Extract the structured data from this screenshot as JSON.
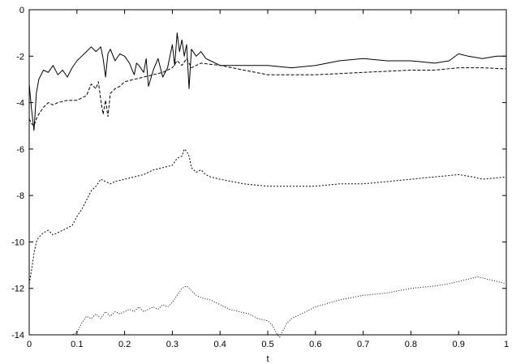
{
  "chart_data": {
    "type": "line",
    "title": "",
    "xlabel": "t",
    "ylabel": "",
    "xlim": [
      0,
      1
    ],
    "ylim": [
      -14,
      0
    ],
    "xticks": [
      0,
      0.1,
      0.2,
      0.3,
      0.4,
      0.5,
      0.6,
      0.7,
      0.8,
      0.9,
      1
    ],
    "yticks": [
      0,
      -2,
      -4,
      -6,
      -8,
      -10,
      -12,
      -14
    ],
    "xtick_labels": [
      "0",
      "0.1",
      "0.2",
      "0.3",
      "0.4",
      "0.5",
      "0.6",
      "0.7",
      "0.8",
      "0.9",
      "1"
    ],
    "ytick_labels": [
      "0",
      "-2",
      "-4",
      "-6",
      "-8",
      "-10",
      "-12",
      "-14"
    ],
    "grid": false,
    "legend": "none",
    "series": [
      {
        "style": "solid",
        "x": [
          0.0,
          0.005,
          0.01,
          0.015,
          0.02,
          0.03,
          0.04,
          0.05,
          0.06,
          0.07,
          0.08,
          0.09,
          0.1,
          0.11,
          0.12,
          0.13,
          0.14,
          0.15,
          0.155,
          0.16,
          0.165,
          0.17,
          0.18,
          0.19,
          0.2,
          0.21,
          0.22,
          0.225,
          0.23,
          0.24,
          0.245,
          0.25,
          0.26,
          0.27,
          0.28,
          0.29,
          0.3,
          0.305,
          0.31,
          0.315,
          0.32,
          0.325,
          0.33,
          0.335,
          0.34,
          0.35,
          0.36,
          0.37,
          0.38,
          0.4,
          0.45,
          0.5,
          0.55,
          0.6,
          0.65,
          0.7,
          0.75,
          0.8,
          0.85,
          0.88,
          0.9,
          0.92,
          0.95,
          0.98,
          1.0
        ],
        "y": [
          -3.2,
          -4.3,
          -5.2,
          -3.6,
          -3.0,
          -2.6,
          -2.7,
          -2.4,
          -2.8,
          -2.6,
          -2.9,
          -2.5,
          -2.2,
          -2.0,
          -1.8,
          -1.6,
          -1.8,
          -1.6,
          -2.1,
          -2.9,
          -1.9,
          -1.7,
          -2.2,
          -1.9,
          -2.0,
          -2.3,
          -2.8,
          -2.3,
          -2.4,
          -2.7,
          -2.1,
          -3.3,
          -2.6,
          -2.1,
          -2.9,
          -2.5,
          -1.5,
          -2.4,
          -1.0,
          -1.8,
          -1.3,
          -2.0,
          -1.5,
          -3.4,
          -1.7,
          -2.0,
          -1.8,
          -2.1,
          -2.2,
          -2.4,
          -2.4,
          -2.4,
          -2.5,
          -2.4,
          -2.2,
          -2.1,
          -2.2,
          -2.2,
          -2.3,
          -2.2,
          -1.9,
          -2.0,
          -2.1,
          -2.0,
          -2.0
        ]
      },
      {
        "style": "dashed",
        "x": [
          0.0,
          0.005,
          0.01,
          0.015,
          0.02,
          0.03,
          0.04,
          0.05,
          0.06,
          0.08,
          0.1,
          0.12,
          0.13,
          0.14,
          0.145,
          0.15,
          0.155,
          0.16,
          0.165,
          0.17,
          0.18,
          0.19,
          0.2,
          0.22,
          0.24,
          0.26,
          0.28,
          0.3,
          0.31,
          0.32,
          0.33,
          0.34,
          0.36,
          0.4,
          0.45,
          0.5,
          0.55,
          0.6,
          0.65,
          0.7,
          0.75,
          0.8,
          0.85,
          0.9,
          0.95,
          1.0
        ],
        "y": [
          -4.7,
          -4.9,
          -5.0,
          -4.7,
          -4.5,
          -4.2,
          -4.0,
          -4.1,
          -4.0,
          -3.9,
          -3.9,
          -3.7,
          -3.2,
          -3.4,
          -3.1,
          -3.9,
          -4.5,
          -3.9,
          -4.6,
          -3.6,
          -3.4,
          -3.3,
          -3.1,
          -3.0,
          -2.9,
          -2.8,
          -2.7,
          -2.5,
          -2.2,
          -2.4,
          -2.1,
          -2.5,
          -2.3,
          -2.4,
          -2.6,
          -2.8,
          -2.8,
          -2.8,
          -2.75,
          -2.7,
          -2.65,
          -2.6,
          -2.6,
          -2.5,
          -2.5,
          -2.55
        ]
      },
      {
        "style": "dotted",
        "x": [
          0.0,
          0.005,
          0.01,
          0.015,
          0.02,
          0.03,
          0.04,
          0.05,
          0.06,
          0.07,
          0.08,
          0.09,
          0.1,
          0.11,
          0.12,
          0.13,
          0.14,
          0.15,
          0.16,
          0.17,
          0.18,
          0.2,
          0.22,
          0.24,
          0.26,
          0.28,
          0.3,
          0.31,
          0.32,
          0.325,
          0.33,
          0.335,
          0.34,
          0.35,
          0.36,
          0.37,
          0.38,
          0.4,
          0.45,
          0.5,
          0.55,
          0.6,
          0.65,
          0.7,
          0.75,
          0.8,
          0.85,
          0.9,
          0.93,
          0.95,
          1.0
        ],
        "y": [
          -11.8,
          -11.2,
          -10.5,
          -10.0,
          -9.8,
          -9.6,
          -9.5,
          -9.7,
          -9.6,
          -9.5,
          -9.4,
          -9.3,
          -8.9,
          -8.6,
          -8.2,
          -7.8,
          -7.6,
          -7.3,
          -7.4,
          -7.5,
          -7.4,
          -7.3,
          -7.2,
          -7.1,
          -6.9,
          -6.8,
          -6.7,
          -6.4,
          -6.3,
          -6.0,
          -6.1,
          -6.3,
          -6.8,
          -7.0,
          -6.9,
          -7.1,
          -7.2,
          -7.3,
          -7.5,
          -7.6,
          -7.6,
          -7.6,
          -7.5,
          -7.5,
          -7.4,
          -7.3,
          -7.2,
          -7.1,
          -7.2,
          -7.3,
          -7.2
        ]
      },
      {
        "style": "dotted-fine",
        "x": [
          0.0,
          0.05,
          0.09,
          0.1,
          0.11,
          0.12,
          0.13,
          0.14,
          0.15,
          0.16,
          0.17,
          0.18,
          0.19,
          0.2,
          0.21,
          0.22,
          0.23,
          0.24,
          0.25,
          0.26,
          0.27,
          0.28,
          0.29,
          0.3,
          0.31,
          0.32,
          0.33,
          0.34,
          0.35,
          0.36,
          0.38,
          0.4,
          0.42,
          0.44,
          0.46,
          0.48,
          0.5,
          0.51,
          0.515,
          0.52,
          0.525,
          0.53,
          0.535,
          0.54,
          0.55,
          0.57,
          0.6,
          0.65,
          0.7,
          0.75,
          0.8,
          0.85,
          0.88,
          0.9,
          0.92,
          0.94,
          0.96,
          0.98,
          1.0
        ],
        "y": [
          -14.0,
          -14.0,
          -14.0,
          -13.9,
          -13.5,
          -13.2,
          -13.3,
          -13.1,
          -13.3,
          -13.0,
          -13.2,
          -13.0,
          -13.1,
          -13.0,
          -12.9,
          -13.0,
          -12.8,
          -13.0,
          -12.9,
          -12.8,
          -12.9,
          -12.7,
          -12.8,
          -12.6,
          -12.3,
          -12.0,
          -11.9,
          -12.1,
          -12.3,
          -12.4,
          -12.5,
          -12.7,
          -12.9,
          -13.0,
          -13.1,
          -13.3,
          -13.4,
          -13.6,
          -13.8,
          -14.0,
          -14.1,
          -13.9,
          -13.7,
          -13.5,
          -13.3,
          -13.1,
          -12.8,
          -12.5,
          -12.3,
          -12.2,
          -12.0,
          -11.9,
          -11.8,
          -11.7,
          -11.6,
          -11.5,
          -11.6,
          -11.7,
          -11.8
        ]
      }
    ]
  }
}
